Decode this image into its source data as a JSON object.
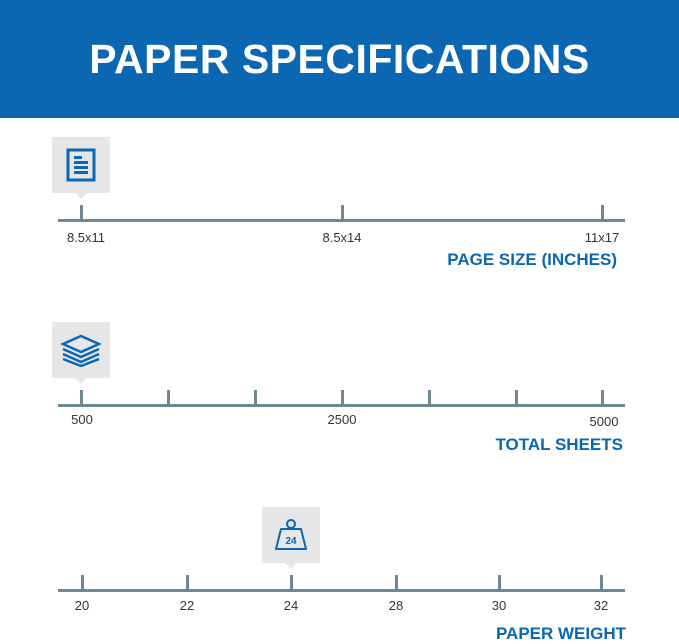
{
  "header": {
    "title": "PAPER SPECIFICATIONS"
  },
  "page_size": {
    "title": "PAGE SIZE (INCHES)",
    "ticks": [
      "8.5x11",
      "8.5x14",
      "11x17"
    ],
    "selected": "8.5x11",
    "icon": "document-icon"
  },
  "total_sheets": {
    "title": "TOTAL SHEETS",
    "labels": [
      "500",
      "2500",
      "5000"
    ],
    "selected": "500",
    "icon": "paper-stack-icon"
  },
  "paper_weight": {
    "title": "PAPER WEIGHT",
    "ticks": [
      "20",
      "22",
      "24",
      "28",
      "30",
      "32"
    ],
    "selected": "24",
    "icon_text": "24",
    "icon": "weight-icon"
  },
  "colors": {
    "accent": "#0b67b2",
    "line": "#6e8794"
  }
}
